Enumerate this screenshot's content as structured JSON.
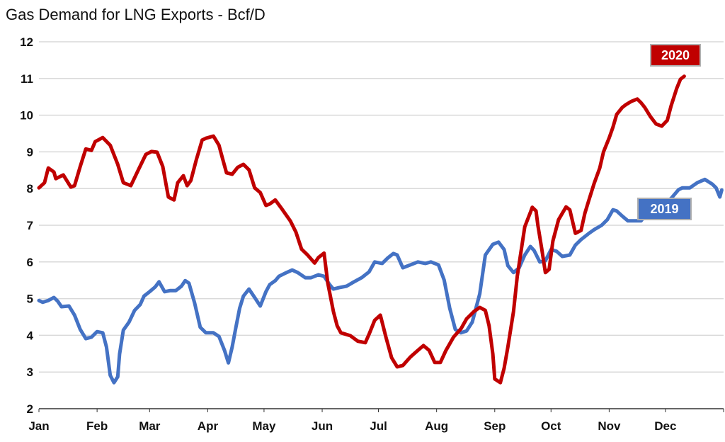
{
  "chart_data": {
    "type": "line",
    "title": "Gas Demand for LNG Exports - Bcf/D",
    "xlabel": "",
    "ylabel": "",
    "ylim": [
      2,
      12
    ],
    "yticks": [
      "2",
      "3",
      "4",
      "5",
      "6",
      "7",
      "8",
      "9",
      "10",
      "11",
      "12"
    ],
    "xticks": [
      "Jan",
      "Feb",
      "Mar",
      "Apr",
      "May",
      "Jun",
      "Jul",
      "Aug",
      "Sep",
      "Oct",
      "Nov",
      "Dec"
    ],
    "x_format": "MM-DD",
    "grid": "horizontal",
    "series": [
      {
        "name": "2020",
        "color": "#c00000",
        "x": [
          "01-01",
          "01-04",
          "01-06",
          "01-09",
          "01-10",
          "01-14",
          "01-18",
          "01-20",
          "01-23",
          "01-26",
          "01-29",
          "01-31",
          "02-04",
          "02-08",
          "02-12",
          "02-15",
          "02-19",
          "02-23",
          "02-27",
          "03-02",
          "03-05",
          "03-08",
          "03-11",
          "03-14",
          "03-16",
          "03-19",
          "03-21",
          "03-23",
          "03-26",
          "03-29",
          "03-31",
          "04-04",
          "04-07",
          "04-09",
          "04-11",
          "04-14",
          "04-17",
          "04-20",
          "04-23",
          "04-26",
          "04-29",
          "05-02",
          "05-04",
          "05-07",
          "05-10",
          "05-15",
          "05-18",
          "05-21",
          "05-24",
          "05-28",
          "05-30",
          "06-02",
          "06-04",
          "06-07",
          "06-09",
          "06-11",
          "06-16",
          "06-20",
          "06-24",
          "06-26",
          "06-29",
          "07-02",
          "07-05",
          "07-08",
          "07-11",
          "07-14",
          "07-18",
          "07-22",
          "07-25",
          "07-28",
          "07-31",
          "08-03",
          "08-06",
          "08-10",
          "08-14",
          "08-17",
          "08-21",
          "08-24",
          "08-27",
          "08-29",
          "08-31",
          "09-01",
          "09-04",
          "09-06",
          "09-08",
          "09-11",
          "09-13",
          "09-17",
          "09-20",
          "09-21",
          "09-23",
          "09-24",
          "09-26",
          "09-28",
          "09-30",
          "10-02",
          "10-05",
          "10-09",
          "10-11",
          "10-14",
          "10-17",
          "10-19",
          "10-21",
          "10-24",
          "10-27",
          "10-29",
          "11-01",
          "11-03",
          "11-05",
          "11-08",
          "11-10",
          "11-13",
          "11-16",
          "11-18",
          "11-20",
          "11-23",
          "11-26",
          "11-29",
          "12-02",
          "12-04",
          "12-07",
          "12-09",
          "12-11"
        ],
        "y": [
          8.02,
          8.16,
          8.56,
          8.45,
          8.27,
          8.37,
          8.04,
          8.08,
          8.6,
          9.08,
          9.04,
          9.28,
          9.39,
          9.18,
          8.66,
          8.16,
          8.08,
          8.51,
          8.93,
          9.01,
          8.99,
          8.6,
          7.77,
          7.69,
          8.16,
          8.35,
          8.08,
          8.22,
          8.8,
          9.32,
          9.37,
          9.43,
          9.18,
          8.8,
          8.43,
          8.39,
          8.58,
          8.66,
          8.51,
          8.02,
          7.89,
          7.54,
          7.58,
          7.69,
          7.48,
          7.12,
          6.81,
          6.35,
          6.2,
          5.97,
          6.12,
          6.24,
          5.42,
          4.65,
          4.26,
          4.07,
          3.99,
          3.84,
          3.8,
          4.03,
          4.41,
          4.55,
          3.95,
          3.39,
          3.14,
          3.18,
          3.41,
          3.59,
          3.72,
          3.59,
          3.26,
          3.26,
          3.59,
          3.95,
          4.18,
          4.45,
          4.65,
          4.76,
          4.68,
          4.26,
          3.49,
          2.81,
          2.71,
          3.1,
          3.68,
          4.65,
          5.61,
          6.96,
          7.35,
          7.49,
          7.39,
          7.0,
          6.38,
          5.71,
          5.8,
          6.57,
          7.15,
          7.5,
          7.42,
          6.78,
          6.86,
          7.32,
          7.65,
          8.14,
          8.56,
          9.0,
          9.38,
          9.67,
          10.02,
          10.21,
          10.29,
          10.38,
          10.44,
          10.34,
          10.21,
          9.96,
          9.76,
          9.7,
          9.86,
          10.25,
          10.73,
          10.98,
          11.06
        ]
      },
      {
        "name": "2019",
        "color": "#4472c4",
        "x": [
          "01-01",
          "01-03",
          "01-06",
          "01-09",
          "01-11",
          "01-13",
          "01-17",
          "01-20",
          "01-23",
          "01-26",
          "01-29",
          "02-01",
          "02-04",
          "02-06",
          "02-08",
          "02-10",
          "02-12",
          "02-13",
          "02-15",
          "02-18",
          "02-21",
          "02-24",
          "02-26",
          "03-01",
          "03-04",
          "03-06",
          "03-09",
          "03-12",
          "03-15",
          "03-18",
          "03-20",
          "03-22",
          "03-25",
          "03-28",
          "03-31",
          "04-04",
          "04-07",
          "04-10",
          "04-12",
          "04-14",
          "04-16",
          "04-18",
          "04-20",
          "04-23",
          "04-26",
          "04-29",
          "05-02",
          "05-04",
          "05-07",
          "05-09",
          "05-13",
          "05-16",
          "05-19",
          "05-23",
          "05-26",
          "05-30",
          "06-02",
          "06-05",
          "06-07",
          "06-10",
          "06-14",
          "06-18",
          "06-22",
          "06-26",
          "06-29",
          "07-03",
          "07-06",
          "07-09",
          "07-11",
          "07-14",
          "07-18",
          "07-22",
          "07-26",
          "07-29",
          "08-02",
          "08-05",
          "08-08",
          "08-11",
          "08-14",
          "08-17",
          "08-20",
          "08-24",
          "08-27",
          "08-31",
          "09-03",
          "09-06",
          "09-08",
          "09-11",
          "09-14",
          "09-17",
          "09-20",
          "09-22",
          "09-25",
          "09-28",
          "10-01",
          "10-04",
          "10-07",
          "10-11",
          "10-14",
          "10-17",
          "10-21",
          "10-24",
          "10-28",
          "10-31",
          "11-03",
          "11-05",
          "11-08",
          "11-11",
          "11-14",
          "11-18",
          "11-20",
          "11-23",
          "11-27",
          "12-01",
          "12-04",
          "12-08",
          "12-10",
          "12-14",
          "12-18",
          "12-22",
          "12-26",
          "12-28",
          "12-30",
          "12-31"
        ],
        "y": [
          4.95,
          4.9,
          4.95,
          5.03,
          4.93,
          4.78,
          4.8,
          4.55,
          4.16,
          3.91,
          3.95,
          4.1,
          4.07,
          3.68,
          2.91,
          2.71,
          2.87,
          3.49,
          4.14,
          4.36,
          4.68,
          4.84,
          5.07,
          5.19,
          5.32,
          5.46,
          5.19,
          5.22,
          5.22,
          5.34,
          5.49,
          5.42,
          4.88,
          4.22,
          4.07,
          4.07,
          3.97,
          3.58,
          3.25,
          3.68,
          4.22,
          4.74,
          5.07,
          5.26,
          5.03,
          4.8,
          5.19,
          5.38,
          5.49,
          5.61,
          5.71,
          5.78,
          5.71,
          5.57,
          5.57,
          5.65,
          5.61,
          5.38,
          5.26,
          5.3,
          5.34,
          5.46,
          5.57,
          5.73,
          6.0,
          5.96,
          6.11,
          6.23,
          6.19,
          5.84,
          5.92,
          6.0,
          5.96,
          6.0,
          5.92,
          5.51,
          4.74,
          4.16,
          4.07,
          4.12,
          4.36,
          5.13,
          6.19,
          6.48,
          6.54,
          6.34,
          5.9,
          5.71,
          5.84,
          6.19,
          6.42,
          6.31,
          6.0,
          6.03,
          6.34,
          6.29,
          6.15,
          6.19,
          6.46,
          6.61,
          6.77,
          6.88,
          7.0,
          7.15,
          7.42,
          7.39,
          7.25,
          7.12,
          7.12,
          7.12,
          7.25,
          7.35,
          7.48,
          7.62,
          7.73,
          7.97,
          8.02,
          8.02,
          8.16,
          8.25,
          8.12,
          8.02,
          7.77,
          7.96
        ]
      }
    ]
  }
}
